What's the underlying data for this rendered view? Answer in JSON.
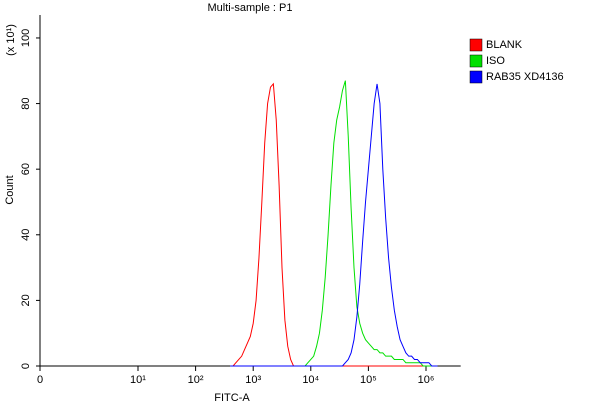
{
  "chart_data": {
    "type": "line",
    "title": "Multi-sample : P1",
    "x_label": "FITC-A",
    "y_label": "Count",
    "y_multiplier": "(x 10¹)",
    "x_scale": "biexponential",
    "xlim": [
      0,
      4000000
    ],
    "ylim": [
      0,
      107
    ],
    "xticks": [
      0,
      {
        "value": 10,
        "label": "10¹"
      },
      {
        "value": 100,
        "label": "10²"
      },
      {
        "value": 1000,
        "label": "10³"
      },
      {
        "value": 10000,
        "label": "10⁴"
      },
      {
        "value": 100000,
        "label": "10⁵"
      },
      {
        "value": 1000000,
        "label": "10⁶"
      }
    ],
    "yticks": [
      0,
      20,
      40,
      60,
      80,
      100
    ],
    "legend": "right",
    "x": [
      398,
      447,
      501,
      562,
      631,
      708,
      794,
      891,
      1000,
      1122,
      1259,
      1413,
      1585,
      1778,
      1995,
      2239,
      2512,
      2818,
      3162,
      3548,
      3981,
      4467,
      5012,
      5623,
      6310,
      7079,
      7943,
      8913,
      10000,
      11220,
      12590,
      14130,
      15850,
      17780,
      19950,
      22390,
      25120,
      28180,
      31620,
      35480,
      39810,
      44670,
      50120,
      56230,
      63100,
      70790,
      79430,
      89130,
      100000,
      112200,
      125900,
      141300,
      158500,
      177800,
      199500,
      223900,
      251200,
      281800,
      316200,
      354800,
      398100,
      446700,
      501200,
      562300,
      631000,
      707900,
      794300,
      891300,
      1000000,
      1122000,
      1259000,
      1413000,
      1585000
    ],
    "series": [
      {
        "name": "BLANK",
        "color": "#ff0000",
        "values": [
          0,
          0,
          1,
          2,
          3,
          5,
          7,
          9,
          13,
          20,
          33,
          50,
          68,
          80,
          85,
          86,
          75,
          55,
          30,
          14,
          6,
          2,
          0,
          0,
          0,
          0,
          0,
          0,
          0,
          0,
          0,
          0,
          0,
          0,
          0,
          0,
          0,
          0,
          0,
          0,
          0,
          0,
          0,
          0,
          0,
          0,
          0,
          0,
          0,
          0,
          0,
          0,
          0,
          0,
          0,
          0,
          0,
          0,
          0,
          0,
          0,
          0,
          0,
          0,
          0,
          0,
          0,
          0,
          0,
          0,
          0,
          0,
          0
        ]
      },
      {
        "name": "ISO",
        "color": "#00e000",
        "values": [
          0,
          0,
          0,
          0,
          0,
          0,
          0,
          0,
          0,
          0,
          0,
          0,
          0,
          0,
          0,
          0,
          0,
          0,
          0,
          0,
          0,
          0,
          0,
          0,
          0,
          0,
          0,
          1,
          2,
          3,
          6,
          10,
          17,
          27,
          40,
          55,
          68,
          75,
          79,
          84,
          87,
          70,
          48,
          30,
          18,
          13,
          10,
          8,
          7,
          6,
          5,
          5,
          4,
          4,
          3,
          3,
          3,
          2,
          2,
          2,
          2,
          1,
          1,
          1,
          1,
          1,
          1,
          0,
          0,
          0,
          0,
          0,
          0
        ]
      },
      {
        "name": "RAB35 XD4136",
        "color": "#0000ff",
        "values": [
          0,
          0,
          0,
          0,
          0,
          0,
          0,
          0,
          0,
          0,
          0,
          0,
          0,
          0,
          0,
          0,
          0,
          0,
          0,
          0,
          0,
          0,
          0,
          0,
          0,
          0,
          0,
          0,
          0,
          0,
          0,
          0,
          0,
          0,
          0,
          0,
          0,
          0,
          0,
          0,
          1,
          2,
          4,
          8,
          15,
          25,
          38,
          50,
          60,
          70,
          80,
          86,
          80,
          60,
          45,
          33,
          24,
          17,
          12,
          8,
          6,
          4,
          3,
          3,
          2,
          2,
          1,
          1,
          1,
          1,
          0,
          0,
          0
        ]
      }
    ]
  }
}
